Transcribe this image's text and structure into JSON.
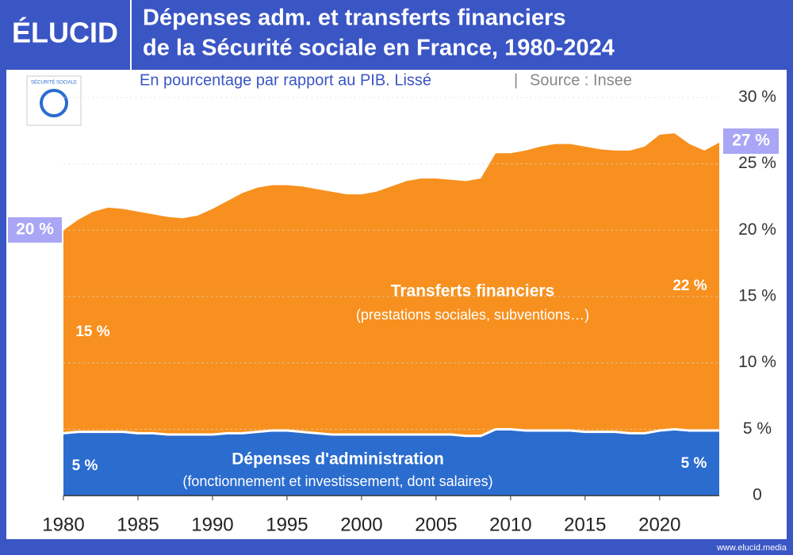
{
  "brand": "ÉLUCID",
  "footer": "www.elucid.media",
  "logo_text": "SÉCURITÉ SOCIALE",
  "chart_data": {
    "type": "stacked-area",
    "title": [
      "Dépenses adm. et transferts financiers",
      "de la Sécurité sociale en France, 1980-2024"
    ],
    "subtitle": "En pourcentage par rapport au PIB. Lissé",
    "source": "Source : Insee",
    "x": [
      1980,
      1981,
      1982,
      1983,
      1984,
      1985,
      1986,
      1987,
      1988,
      1989,
      1990,
      1991,
      1992,
      1993,
      1994,
      1995,
      1996,
      1997,
      1998,
      1999,
      2000,
      2001,
      2002,
      2003,
      2004,
      2005,
      2006,
      2007,
      2008,
      2009,
      2010,
      2011,
      2012,
      2013,
      2014,
      2015,
      2016,
      2017,
      2018,
      2019,
      2020,
      2021,
      2022,
      2023,
      2024
    ],
    "xlim": [
      1980,
      2024
    ],
    "xticks": [
      1980,
      1985,
      1990,
      1995,
      2000,
      2005,
      2010,
      2015,
      2020
    ],
    "ylim": [
      0,
      30
    ],
    "yticks": [
      0,
      {
        "value": 5,
        "label": "5 %"
      },
      {
        "value": 10,
        "label": "10 %"
      },
      {
        "value": 15,
        "label": "15 %"
      },
      {
        "value": 20,
        "label": "20 %"
      },
      {
        "value": 25,
        "label": "25 %"
      },
      {
        "value": 30,
        "label": "30 %"
      }
    ],
    "grid": true,
    "series": [
      {
        "name": "Dépenses d'administration",
        "description": "(fonctionnement et investissement, dont salaires)",
        "color": "#2b6ccf",
        "start_label": "5 %",
        "end_label": "5 %",
        "values": [
          4.7,
          4.8,
          4.8,
          4.8,
          4.8,
          4.7,
          4.7,
          4.6,
          4.6,
          4.6,
          4.6,
          4.7,
          4.7,
          4.8,
          4.9,
          4.9,
          4.8,
          4.7,
          4.6,
          4.6,
          4.6,
          4.6,
          4.6,
          4.6,
          4.6,
          4.6,
          4.6,
          4.5,
          4.5,
          5.0,
          5.0,
          4.9,
          4.9,
          4.9,
          4.9,
          4.8,
          4.8,
          4.8,
          4.7,
          4.7,
          4.9,
          5.0,
          4.9,
          4.9,
          4.9
        ]
      },
      {
        "name": "Transferts financiers",
        "description": "(prestations sociales, subventions…)",
        "color": "#f7901e",
        "start_label": "15 %",
        "end_label": "22 %",
        "values": [
          15.3,
          16.0,
          16.6,
          16.9,
          16.8,
          16.7,
          16.5,
          16.4,
          16.3,
          16.5,
          17.0,
          17.5,
          18.1,
          18.4,
          18.5,
          18.5,
          18.5,
          18.4,
          18.3,
          18.1,
          18.1,
          18.3,
          18.7,
          19.1,
          19.3,
          19.3,
          19.2,
          19.2,
          19.4,
          20.8,
          20.8,
          21.1,
          21.4,
          21.6,
          21.6,
          21.5,
          21.3,
          21.2,
          21.3,
          21.6,
          22.3,
          22.3,
          21.6,
          21.1,
          21.7
        ]
      }
    ],
    "start_total_label": "20 %",
    "end_total_label": "27 %"
  }
}
